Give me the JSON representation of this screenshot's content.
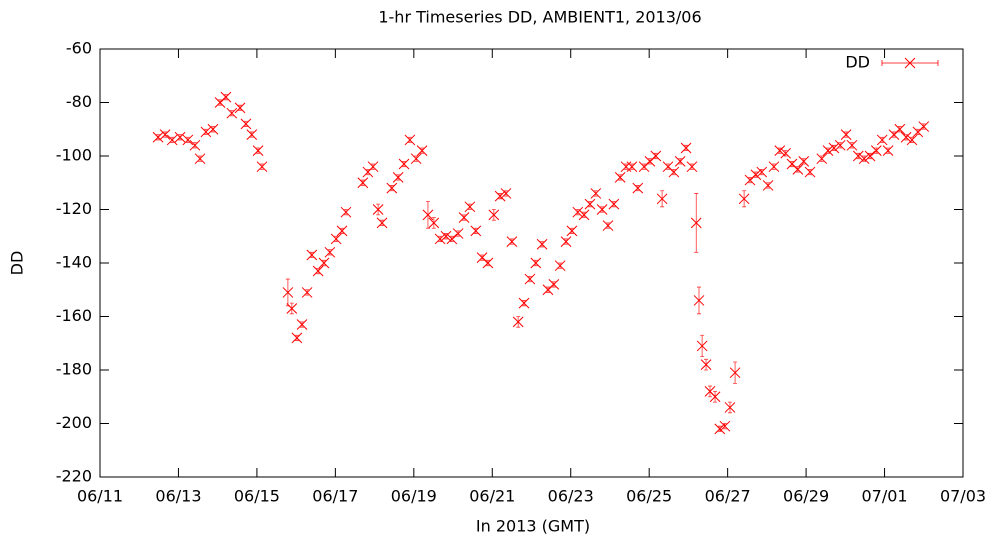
{
  "chart_data": {
    "type": "scatter",
    "title": "1-hr Timeseries DD, AMBIENT1, 2013/06",
    "x_label": "In 2013 (GMT)",
    "y_label": "DD",
    "legend": "upper right",
    "grid": false,
    "xlim": [
      11,
      33
    ],
    "xticks": [
      {
        "value": 11,
        "label": "06/11"
      },
      {
        "value": 13,
        "label": "06/13"
      },
      {
        "value": 15,
        "label": "06/15"
      },
      {
        "value": 17,
        "label": "06/17"
      },
      {
        "value": 19,
        "label": "06/19"
      },
      {
        "value": 21,
        "label": "06/21"
      },
      {
        "value": 23,
        "label": "06/23"
      },
      {
        "value": 25,
        "label": "06/25"
      },
      {
        "value": 27,
        "label": "06/27"
      },
      {
        "value": 29,
        "label": "06/29"
      },
      {
        "value": 31,
        "label": "07/01"
      },
      {
        "value": 33,
        "label": "07/03"
      }
    ],
    "ylim": [
      -220,
      -60
    ],
    "yticks": [
      -220,
      -200,
      -180,
      -160,
      -140,
      -120,
      -100,
      -80,
      -60
    ],
    "series": [
      {
        "name": "DD",
        "color": "#ff0000",
        "x": [
          12.48,
          12.66,
          12.84,
          13.04,
          13.24,
          13.42,
          13.55,
          13.7,
          13.88,
          14.06,
          14.21,
          14.36,
          14.57,
          14.72,
          14.87,
          15.03,
          15.13,
          15.79,
          15.89,
          16.02,
          16.15,
          16.28,
          16.4,
          16.56,
          16.71,
          16.86,
          17.02,
          17.17,
          17.27,
          17.7,
          17.83,
          17.96,
          18.09,
          18.19,
          18.44,
          18.6,
          18.75,
          18.9,
          19.06,
          19.21,
          19.36,
          19.51,
          19.67,
          19.82,
          19.97,
          20.13,
          20.28,
          20.43,
          20.58,
          20.74,
          20.89,
          21.04,
          21.2,
          21.35,
          21.5,
          21.66,
          21.81,
          21.96,
          22.11,
          22.27,
          22.42,
          22.57,
          22.73,
          22.88,
          23.03,
          23.18,
          23.34,
          23.49,
          23.64,
          23.8,
          23.95,
          24.1,
          24.26,
          24.41,
          24.56,
          24.71,
          24.87,
          25.02,
          25.17,
          25.33,
          25.48,
          25.63,
          25.79,
          25.94,
          26.09,
          26.2,
          26.27,
          26.35,
          26.45,
          26.55,
          26.68,
          26.8,
          26.93,
          27.06,
          27.19,
          27.42,
          27.57,
          27.72,
          27.87,
          28.03,
          28.18,
          28.33,
          28.48,
          28.64,
          28.79,
          28.94,
          29.1,
          29.4,
          29.56,
          29.71,
          29.87,
          30.02,
          30.17,
          30.33,
          30.48,
          30.63,
          30.79,
          30.94,
          31.09,
          31.24,
          31.39,
          31.55,
          31.7,
          31.85,
          32.0
        ],
        "values": [
          -93,
          -92,
          -94,
          -93,
          -94,
          -96,
          -101,
          -91,
          -90,
          -80,
          -78,
          -84,
          -82,
          -88,
          -92,
          -98,
          -104,
          -151,
          -157,
          -168,
          -163,
          -151,
          -137,
          -143,
          -140,
          -136,
          -131,
          -128,
          -121,
          -110,
          -106,
          -104,
          -120,
          -125,
          -112,
          -108,
          -103,
          -94,
          -101,
          -98,
          -122,
          -125,
          -131,
          -130,
          -131,
          -129,
          -123,
          -119,
          -128,
          -138,
          -140,
          -122,
          -115,
          -114,
          -132,
          -162,
          -155,
          -146,
          -140,
          -133,
          -150,
          -148,
          -141,
          -132,
          -128,
          -121,
          -122,
          -118,
          -114,
          -120,
          -126,
          -118,
          -108,
          -104,
          -104,
          -112,
          -104,
          -102,
          -100,
          -116,
          -104,
          -106,
          -102,
          -97,
          -104,
          -125,
          -154,
          -171,
          -178,
          -188,
          -190,
          -202,
          -201,
          -194,
          -181,
          -116,
          -109,
          -107,
          -106,
          -111,
          -104,
          -98,
          -99,
          -103,
          -105,
          -102,
          -106,
          -101,
          -98,
          -97,
          -96,
          -92,
          -96,
          -100,
          -101,
          -100,
          -98,
          -94,
          -98,
          -92,
          -90,
          -93,
          -94,
          -91,
          -89
        ],
        "errors": [
          1,
          1,
          1,
          1,
          1,
          1,
          1,
          1,
          1,
          1,
          1,
          1,
          1,
          1,
          1,
          1,
          1,
          5,
          2,
          1,
          1,
          1,
          1,
          1,
          1,
          1,
          1,
          1,
          1,
          1,
          1,
          1,
          2,
          1,
          1,
          1,
          1,
          1,
          1,
          1,
          5,
          2,
          1,
          1,
          1,
          1,
          1,
          1,
          1,
          1,
          1,
          2,
          1,
          1,
          1,
          2,
          1,
          1,
          1,
          1,
          1,
          1,
          1,
          1,
          1,
          1,
          1,
          1,
          1,
          1,
          1,
          1,
          1,
          1,
          1,
          1,
          1,
          1,
          1,
          3,
          1,
          1,
          1,
          1,
          1,
          11,
          5,
          4,
          2,
          2,
          2,
          1,
          1,
          2,
          4,
          3,
          1,
          1,
          1,
          1,
          1,
          1,
          1,
          1,
          1,
          1,
          1,
          1,
          1,
          1,
          1,
          1,
          1,
          1,
          1,
          1,
          1,
          1,
          1,
          1,
          1,
          1,
          1,
          1,
          1
        ]
      }
    ]
  }
}
